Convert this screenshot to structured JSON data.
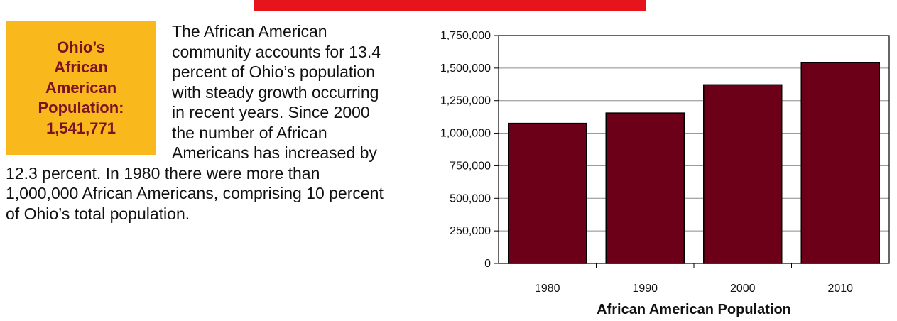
{
  "callout": {
    "lines": [
      "Ohio’s",
      "African",
      "American",
      "Population:",
      "1,541,771"
    ],
    "background": "#f9b81b",
    "text_color": "#7a1325"
  },
  "article": {
    "text": "The African American community accounts for 13.4 percent of Ohio’s population with steady growth occurring in recent years.  Since 2000 the number of African Americans has increased by 12.3 percent. In 1980 there were more than 1,000,000 African Americans, comprising 10 percent of Ohio’s total population."
  },
  "accent_color": "#e8141c",
  "chart_data": {
    "type": "bar",
    "categories": [
      "1980",
      "1990",
      "2000",
      "2010"
    ],
    "series": [
      {
        "values": [
          1076000,
          1155000,
          1372000,
          1541771
        ],
        "color": "#6b0018"
      }
    ],
    "xlabel": "African American Population",
    "ylabel": "",
    "ylim": [
      0,
      1750000
    ],
    "yticks": [
      0,
      250000,
      500000,
      750000,
      1000000,
      1250000,
      1500000,
      1750000
    ],
    "ytick_labels": [
      "0",
      "250,000",
      "500,000",
      "750,000",
      "1,000,000",
      "1,250,000",
      "1,500,000",
      "1,750,000"
    ],
    "grid": true,
    "legend": "none"
  }
}
